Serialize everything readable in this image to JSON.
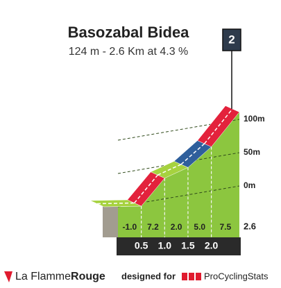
{
  "chart_data": {
    "type": "profile",
    "title": "Basozabal Bidea",
    "subtitle": "124 m - 2.6 Km at 4.3 %",
    "category": "2",
    "values": [
      -1.0,
      7.2,
      2.0,
      5.0,
      7.5
    ],
    "value_labels": [
      "-1.0",
      "7.2",
      "2.0",
      "5.0",
      "7.5"
    ],
    "colors": [
      "#a6d23f",
      "#e3223c",
      "#a6d23f",
      "#2f5f9c",
      "#e3223c"
    ],
    "xticks": [
      {
        "value": 0.5,
        "label": "0.5"
      },
      {
        "value": 1,
        "label": "1.0"
      },
      {
        "value": 1.5,
        "label": "1.5"
      },
      {
        "value": 2,
        "label": "2.0"
      }
    ],
    "length": 2.6,
    "yticks": [
      {
        "value": 0,
        "label": "0m"
      },
      {
        "value": 50,
        "label": "50m"
      },
      {
        "value": 100,
        "label": "100m"
      }
    ],
    "footer": {
      "brand": "La Flamme",
      "brand_bold": "Rouge",
      "designed": "designed for",
      "site": "ProCyclingStats"
    }
  }
}
